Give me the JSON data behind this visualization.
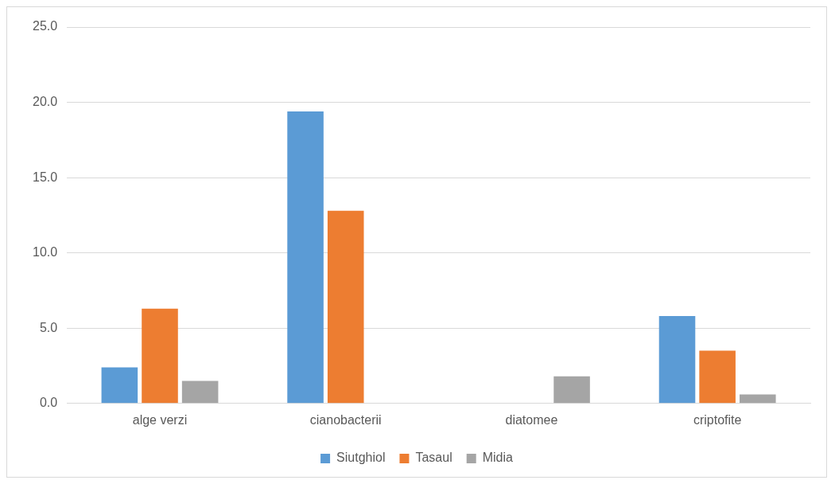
{
  "chart_data": {
    "type": "bar",
    "categories": [
      "alge verzi",
      "cianobacterii",
      "diatomee",
      "criptofite"
    ],
    "series": [
      {
        "name": "Siutghiol",
        "color": "#5b9bd5",
        "values": [
          2.4,
          19.4,
          0,
          5.8
        ]
      },
      {
        "name": "Tasaul",
        "color": "#ed7d31",
        "values": [
          6.3,
          12.8,
          0,
          3.5
        ]
      },
      {
        "name": "Midia",
        "color": "#a5a5a5",
        "values": [
          1.5,
          0,
          1.8,
          0.6
        ]
      }
    ],
    "ylim": [
      0,
      25
    ],
    "yticks": [
      {
        "value": 0,
        "label": "0.0"
      },
      {
        "value": 5,
        "label": "5.0"
      },
      {
        "value": 10,
        "label": "10.0"
      },
      {
        "value": 15,
        "label": "15.0"
      },
      {
        "value": 20,
        "label": "20.0"
      },
      {
        "value": 25,
        "label": "25.0"
      }
    ],
    "grid": "y",
    "legend": "bottom"
  }
}
